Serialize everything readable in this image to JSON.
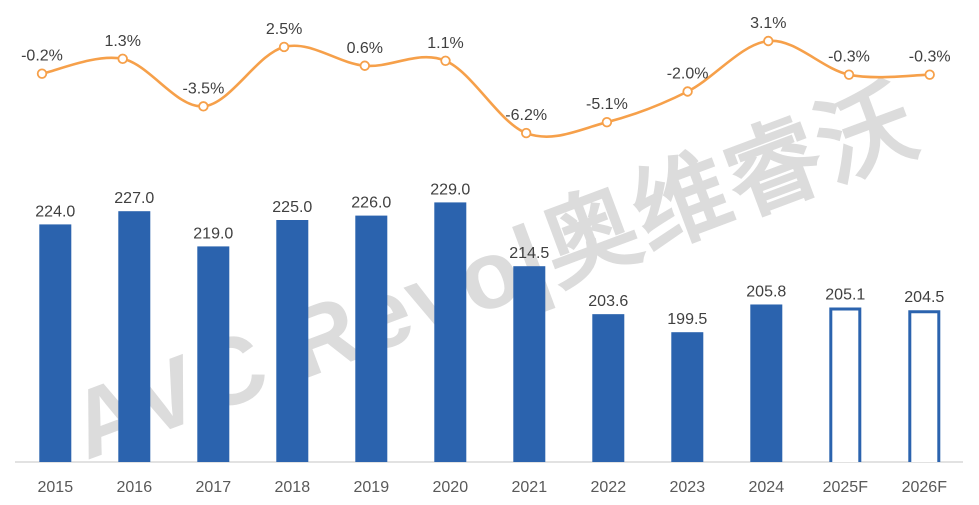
{
  "watermark": {
    "text": "AVC Revo|奥维睿沃"
  },
  "chart_data": {
    "type": "bar",
    "subtype": "combo-bar-line",
    "title": "",
    "xlabel": "",
    "ylabel": "",
    "legend": "none",
    "grid": false,
    "background": "#FFFFFF",
    "categories": [
      "2015",
      "2016",
      "2017",
      "2018",
      "2019",
      "2020",
      "2021",
      "2022",
      "2023",
      "2024",
      "2025F",
      "2026F"
    ],
    "series": [
      {
        "name": "annual-value-bars",
        "type": "bar",
        "values": [
          224.0,
          227.0,
          219.0,
          225.0,
          226.0,
          229.0,
          214.5,
          203.6,
          199.5,
          205.8,
          205.1,
          204.5
        ],
        "labels": [
          "224.0",
          "227.0",
          "219.0",
          "225.0",
          "226.0",
          "229.0",
          "214.5",
          "203.6",
          "199.5",
          "205.8",
          "205.1",
          "204.5"
        ],
        "forecast": [
          false,
          false,
          false,
          false,
          false,
          false,
          false,
          false,
          false,
          false,
          true,
          true
        ],
        "color": "#2B63AE"
      },
      {
        "name": "yoy-change-line",
        "type": "line",
        "values": [
          -0.2,
          1.3,
          -3.5,
          2.5,
          0.6,
          1.1,
          -6.2,
          -5.1,
          -2.0,
          3.1,
          -0.3,
          -0.3
        ],
        "labels": [
          "-0.2%",
          "1.3%",
          "-3.5%",
          "2.5%",
          "0.6%",
          "1.1%",
          "-6.2%",
          "-5.1%",
          "-2.0%",
          "3.1%",
          "-0.3%",
          "-0.3%"
        ],
        "color": "#F6A04A",
        "marker_fill": "#FFFFFF",
        "marker_stroke": "#F6A04A"
      }
    ],
    "data_label_color": "#404040",
    "axis_label_color": "#595959",
    "axis_line_color": "#D9D9D9"
  }
}
